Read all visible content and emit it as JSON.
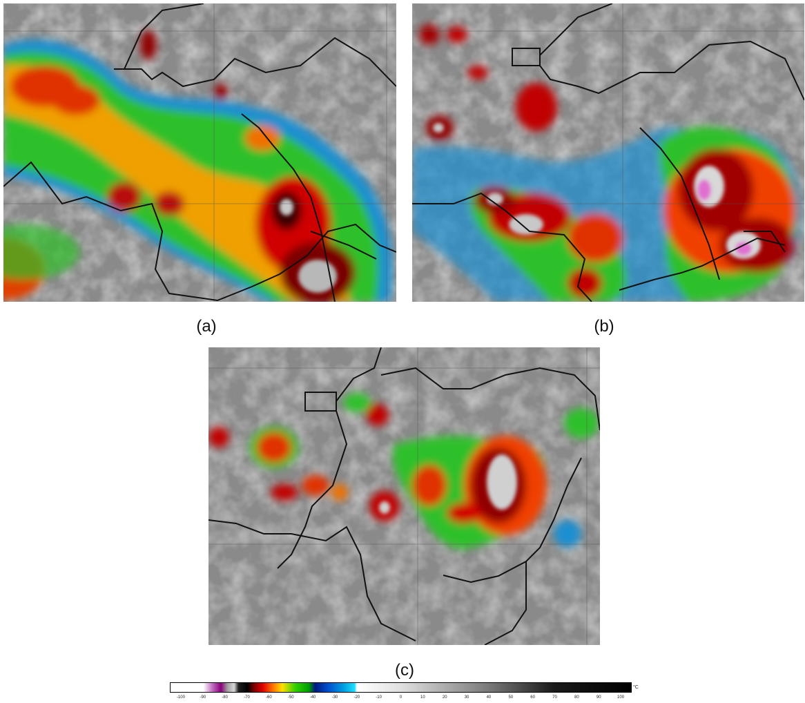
{
  "panels": [
    {
      "id": "a",
      "label": "(a)"
    },
    {
      "id": "b",
      "label": "(b)"
    },
    {
      "id": "c",
      "label": "(c)"
    }
  ],
  "colorbar": {
    "unit": "°C",
    "ticks": [
      "-100",
      "-90",
      "-80",
      "-70",
      "-60",
      "-50",
      "-40",
      "-30",
      "-20",
      "-10",
      "0",
      "10",
      "20",
      "30",
      "40",
      "50",
      "60",
      "70",
      "80",
      "90",
      "100"
    ],
    "stops": [
      {
        "value": -105,
        "color": "#ffffff"
      },
      {
        "value": -91,
        "color": "#ffffff"
      },
      {
        "value": -90,
        "color": "#ffffff"
      },
      {
        "value": -86,
        "color": "#c070c0"
      },
      {
        "value": -82,
        "color": "#8a007a"
      },
      {
        "value": -79,
        "color": "#a0a0a0"
      },
      {
        "value": -76,
        "color": "#d8d8d8"
      },
      {
        "value": -74,
        "color": "#202020"
      },
      {
        "value": -70,
        "color": "#000000"
      },
      {
        "value": -67,
        "color": "#7a0000"
      },
      {
        "value": -63,
        "color": "#e00000"
      },
      {
        "value": -58,
        "color": "#ff7a00"
      },
      {
        "value": -54,
        "color": "#ffe000"
      },
      {
        "value": -48,
        "color": "#30d000"
      },
      {
        "value": -42,
        "color": "#00a000"
      },
      {
        "value": -39,
        "color": "#001880"
      },
      {
        "value": -33,
        "color": "#0050d0"
      },
      {
        "value": -26,
        "color": "#00a0e0"
      },
      {
        "value": -21,
        "color": "#20e0ff"
      },
      {
        "value": -20,
        "color": "#ffffff"
      },
      {
        "value": 0,
        "color": "#e0e0e0"
      },
      {
        "value": 40,
        "color": "#7a7a7a"
      },
      {
        "value": 70,
        "color": "#1a1a1a"
      },
      {
        "value": 105,
        "color": "#000000"
      }
    ]
  }
}
